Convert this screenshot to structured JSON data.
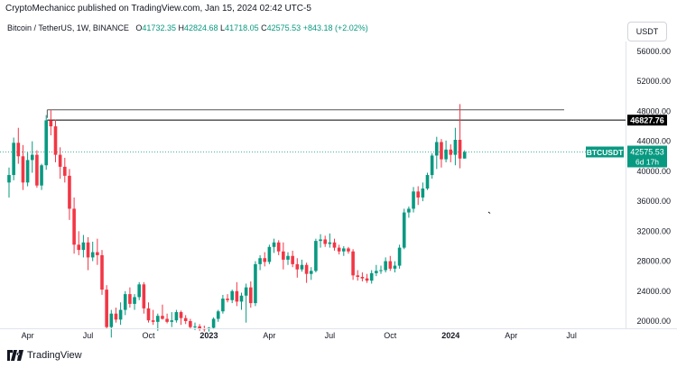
{
  "header": {
    "published": "CryptoMechanicc published on TradingView.com, Jan 15, 2024 02:42 UTC-5"
  },
  "legend": {
    "symbol": "Bitcoin / TetherUS, 1W, BINANCE",
    "open_label": "O",
    "open": "41732.35",
    "high_label": "H",
    "high": "42824.68",
    "low_label": "L",
    "low": "41718.05",
    "close_label": "C",
    "close": "42575.53",
    "change": "+843.18 (+2.02%)"
  },
  "currency_button": "USDT",
  "footer": {
    "brand": "TradingView",
    "logo_icon": "tradingview-logo-icon"
  },
  "colors": {
    "up": "#089981",
    "down": "#f23645",
    "line": "#000000",
    "price_tag": "#089981"
  },
  "chart_data": {
    "type": "candlestick",
    "title": "Bitcoin / TetherUS, 1W, BINANCE",
    "y_ticks": [
      "56000.00",
      "52000.00",
      "48000.00",
      "44000.00",
      "40000.00",
      "36000.00",
      "32000.00",
      "28000.00",
      "24000.00",
      "20000.00"
    ],
    "y_tick_values": [
      56000,
      52000,
      48000,
      44000,
      40000,
      36000,
      32000,
      28000,
      24000,
      20000
    ],
    "ylim": [
      19000,
      59000
    ],
    "x_ticks": [
      "Apr",
      "Jul",
      "Oct",
      "2023",
      "Apr",
      "Jul",
      "Oct",
      "2024",
      "Apr",
      "Jul"
    ],
    "x_tick_weeks": [
      4,
      17,
      30,
      43,
      56,
      69,
      82,
      95,
      108,
      121
    ],
    "x_tick_bold": [
      false,
      false,
      false,
      true,
      false,
      false,
      false,
      true,
      false,
      false
    ],
    "level_line": {
      "value": 46827.76,
      "label": "46827.76"
    },
    "upper_line": {
      "value": 48200
    },
    "price_tag": {
      "symbol": "BTCUSDT",
      "value": 42575.53,
      "label": "42575.53",
      "countdown": "6d 17h"
    },
    "candles": [
      [
        38500,
        40500,
        36500,
        39500
      ],
      [
        39500,
        44500,
        38800,
        43800
      ],
      [
        43800,
        45800,
        41000,
        42000
      ],
      [
        42000,
        43500,
        37500,
        38500
      ],
      [
        38500,
        42500,
        38000,
        41500
      ],
      [
        41500,
        44000,
        39800,
        42200
      ],
      [
        42200,
        42800,
        37800,
        38100
      ],
      [
        38100,
        41000,
        37500,
        40800
      ],
      [
        40800,
        47500,
        40200,
        46800
      ],
      [
        46800,
        48200,
        44800,
        46000
      ],
      [
        46000,
        46900,
        41200,
        42200
      ],
      [
        42200,
        43200,
        39000,
        40600
      ],
      [
        40600,
        41800,
        38500,
        39400
      ],
      [
        39400,
        40300,
        33500,
        35000
      ],
      [
        35000,
        36500,
        29000,
        30200
      ],
      [
        30200,
        32000,
        28800,
        29500
      ],
      [
        29500,
        31500,
        28500,
        30500
      ],
      [
        30500,
        31200,
        26800,
        28500
      ],
      [
        28500,
        30600,
        28000,
        29200
      ],
      [
        29200,
        31000,
        27500,
        28800
      ],
      [
        28800,
        29500,
        23500,
        24200
      ],
      [
        24200,
        24800,
        19000,
        19200
      ],
      [
        19200,
        21500,
        17800,
        21000
      ],
      [
        21000,
        21800,
        19800,
        20200
      ],
      [
        20200,
        22500,
        19500,
        21500
      ],
      [
        21500,
        24000,
        20800,
        23600
      ],
      [
        23600,
        24500,
        21800,
        22300
      ],
      [
        22300,
        23600,
        21500,
        23200
      ],
      [
        23200,
        25200,
        22800,
        24900
      ],
      [
        24900,
        25200,
        21000,
        21700
      ],
      [
        21700,
        22500,
        19800,
        20100
      ],
      [
        20100,
        21500,
        19500,
        19900
      ],
      [
        19900,
        21000,
        18700,
        20700
      ],
      [
        20700,
        22200,
        20200,
        20300
      ],
      [
        20300,
        21000,
        19700,
        19900
      ],
      [
        19900,
        21200,
        19200,
        20100
      ],
      [
        20100,
        21500,
        19800,
        21200
      ],
      [
        21200,
        21400,
        19500,
        20400
      ],
      [
        20400,
        20800,
        19600,
        20000
      ],
      [
        20000,
        20300,
        19000,
        19200
      ],
      [
        19200,
        19800,
        18800,
        19300
      ],
      [
        19300,
        19600,
        18700,
        19000
      ],
      [
        19000,
        19400,
        18600,
        18900
      ],
      [
        18900,
        19200,
        18600,
        19100
      ],
      [
        19100,
        20500,
        18900,
        20300
      ],
      [
        20300,
        21500,
        19900,
        21300
      ],
      [
        21300,
        23500,
        21000,
        23000
      ],
      [
        23000,
        23600,
        22500,
        22800
      ],
      [
        22800,
        24200,
        22400,
        24000
      ],
      [
        24000,
        25200,
        22000,
        22600
      ],
      [
        22600,
        23800,
        21500,
        23400
      ],
      [
        23400,
        25000,
        19800,
        24500
      ],
      [
        24500,
        25300,
        21800,
        22400
      ],
      [
        22400,
        28000,
        22000,
        27600
      ],
      [
        27600,
        28800,
        26800,
        28400
      ],
      [
        28400,
        29200,
        27300,
        27900
      ],
      [
        27900,
        30200,
        27600,
        29900
      ],
      [
        29900,
        31000,
        29100,
        30500
      ],
      [
        30500,
        30800,
        28800,
        29300
      ],
      [
        29300,
        30500,
        26900,
        28200
      ],
      [
        28200,
        29200,
        27500,
        28700
      ],
      [
        28700,
        29400,
        27200,
        27600
      ],
      [
        27600,
        28400,
        25800,
        26900
      ],
      [
        26900,
        28200,
        26600,
        27500
      ],
      [
        27500,
        27800,
        25100,
        26300
      ],
      [
        26300,
        27200,
        25500,
        26700
      ],
      [
        26700,
        31000,
        26500,
        30700
      ],
      [
        30700,
        31600,
        29800,
        30900
      ],
      [
        30900,
        31400,
        29900,
        30300
      ],
      [
        30300,
        31700,
        29800,
        30500
      ],
      [
        30500,
        31000,
        29400,
        29800
      ],
      [
        29800,
        30200,
        28900,
        29300
      ],
      [
        29300,
        30000,
        28700,
        29700
      ],
      [
        29700,
        29900,
        29000,
        29300
      ],
      [
        29300,
        29600,
        25500,
        26100
      ],
      [
        26100,
        26800,
        25400,
        25900
      ],
      [
        25900,
        26500,
        25300,
        25700
      ],
      [
        25700,
        26300,
        25100,
        25400
      ],
      [
        25400,
        26800,
        25000,
        26400
      ],
      [
        26400,
        27500,
        26000,
        26700
      ],
      [
        26700,
        27400,
        26300,
        26800
      ],
      [
        26800,
        28500,
        26500,
        28000
      ],
      [
        28000,
        28700,
        26700,
        27000
      ],
      [
        27000,
        28000,
        26500,
        27400
      ],
      [
        27400,
        30200,
        27000,
        29800
      ],
      [
        29800,
        35000,
        29600,
        34500
      ],
      [
        34500,
        35300,
        33800,
        35000
      ],
      [
        35000,
        37900,
        34500,
        37300
      ],
      [
        37300,
        38000,
        35500,
        36500
      ],
      [
        36500,
        38500,
        36000,
        37700
      ],
      [
        37700,
        39800,
        37500,
        39500
      ],
      [
        39500,
        42400,
        39000,
        42100
      ],
      [
        42100,
        44600,
        40300,
        43900
      ],
      [
        43900,
        44300,
        40500,
        41600
      ],
      [
        41600,
        44100,
        41200,
        42900
      ],
      [
        42900,
        43600,
        41200,
        42200
      ],
      [
        42200,
        45800,
        40800,
        44200
      ],
      [
        44200,
        48970,
        40400,
        41700
      ],
      [
        41700,
        42800,
        41700,
        42575
      ]
    ]
  }
}
